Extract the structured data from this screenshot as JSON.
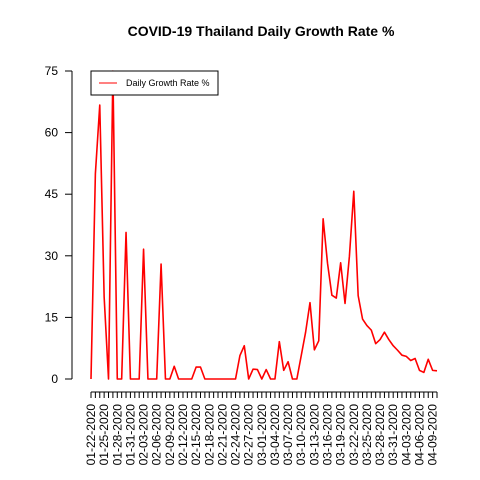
{
  "chart_data": {
    "type": "line",
    "title": "COVID-19 Thailand Daily Growth Rate %",
    "xlabel": "",
    "ylabel": "",
    "ylim": [
      0,
      75
    ],
    "yticks": [
      0,
      15,
      30,
      45,
      60,
      75
    ],
    "grid": false,
    "legend_position": "top-left",
    "x_tick_labels": [
      "01-22-2020",
      "01-25-2020",
      "01-28-2020",
      "01-31-2020",
      "02-03-2020",
      "02-06-2020",
      "02-09-2020",
      "02-12-2020",
      "02-15-2020",
      "02-18-2020",
      "02-21-2020",
      "02-24-2020",
      "02-27-2020",
      "03-01-2020",
      "03-04-2020",
      "03-07-2020",
      "03-10-2020",
      "03-13-2020",
      "03-16-2020",
      "03-19-2020",
      "03-22-2020",
      "03-25-2020",
      "03-28-2020",
      "03-31-2020",
      "04-03-2020",
      "04-06-2020",
      "04-09-2020"
    ],
    "series": [
      {
        "name": "Daily Growth Rate %",
        "color": "#ff0000",
        "x": [
          "01-22-2020",
          "01-23-2020",
          "01-24-2020",
          "01-25-2020",
          "01-26-2020",
          "01-27-2020",
          "01-28-2020",
          "01-29-2020",
          "01-30-2020",
          "01-31-2020",
          "02-01-2020",
          "02-02-2020",
          "02-03-2020",
          "02-04-2020",
          "02-05-2020",
          "02-06-2020",
          "02-07-2020",
          "02-08-2020",
          "02-09-2020",
          "02-10-2020",
          "02-11-2020",
          "02-12-2020",
          "02-13-2020",
          "02-14-2020",
          "02-15-2020",
          "02-16-2020",
          "02-17-2020",
          "02-18-2020",
          "02-19-2020",
          "02-20-2020",
          "02-21-2020",
          "02-22-2020",
          "02-23-2020",
          "02-24-2020",
          "02-25-2020",
          "02-26-2020",
          "02-27-2020",
          "02-28-2020",
          "02-29-2020",
          "03-01-2020",
          "03-02-2020",
          "03-03-2020",
          "03-04-2020",
          "03-05-2020",
          "03-06-2020",
          "03-07-2020",
          "03-08-2020",
          "03-09-2020",
          "03-10-2020",
          "03-11-2020",
          "03-12-2020",
          "03-13-2020",
          "03-14-2020",
          "03-15-2020",
          "03-16-2020",
          "03-17-2020",
          "03-18-2020",
          "03-19-2020",
          "03-20-2020",
          "03-21-2020",
          "03-22-2020",
          "03-23-2020",
          "03-24-2020",
          "03-25-2020",
          "03-26-2020",
          "03-27-2020",
          "03-28-2020",
          "03-29-2020",
          "03-30-2020",
          "03-31-2020",
          "04-01-2020",
          "04-02-2020",
          "04-03-2020",
          "04-04-2020",
          "04-05-2020",
          "04-06-2020",
          "04-07-2020",
          "04-08-2020",
          "04-09-2020",
          "04-10-2020"
        ],
        "values": [
          0,
          50,
          66.7,
          20,
          0,
          75,
          0,
          0,
          35.7,
          0,
          0,
          0,
          31.6,
          0,
          0,
          0,
          28,
          0,
          0,
          3.1,
          0,
          0,
          0,
          0,
          2.9,
          2.9,
          0,
          0,
          0,
          0,
          0,
          0,
          0,
          0,
          5.7,
          8.1,
          0,
          2.4,
          2.3,
          0,
          2.3,
          0,
          0,
          9.1,
          2.1,
          4.2,
          0,
          0,
          5.7,
          11.4,
          18.6,
          7.1,
          9.3,
          39.0,
          28.2,
          20.4,
          19.7,
          28.3,
          18.4,
          29.9,
          45.7,
          20.3,
          14.6,
          13.0,
          11.9,
          8.6,
          9.6,
          11.4,
          9.6,
          8.1,
          7.0,
          5.8,
          5.5,
          4.5,
          5.0,
          2.1,
          1.6,
          4.8,
          2.1,
          2.0
        ]
      }
    ]
  }
}
